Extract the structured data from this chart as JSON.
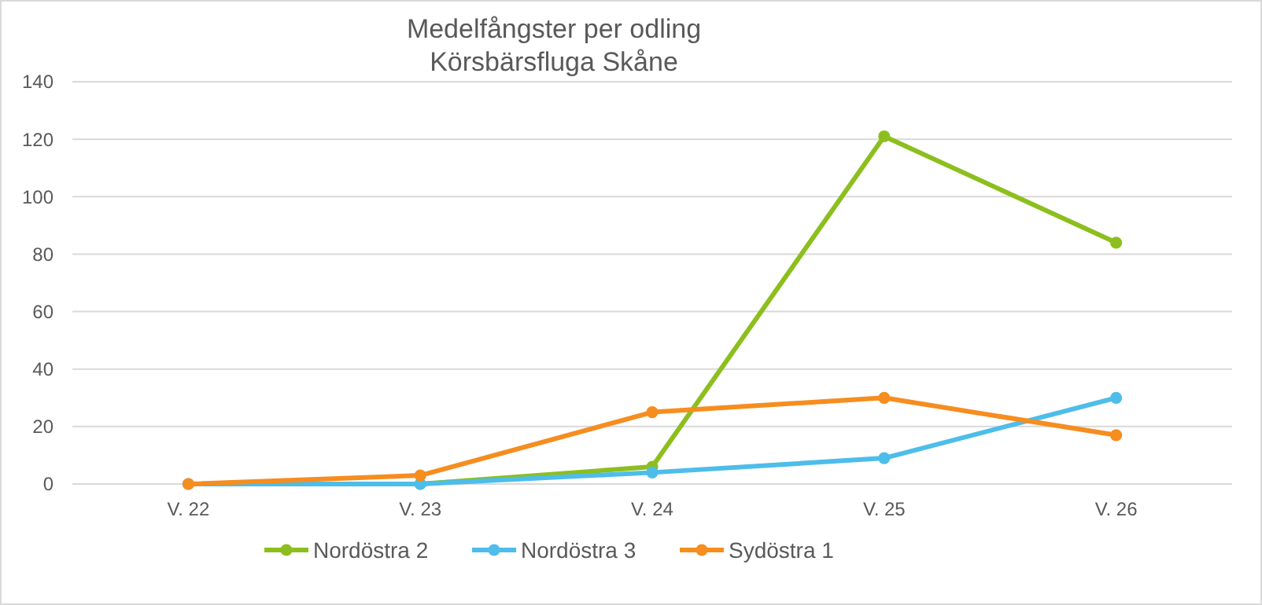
{
  "chart_data": {
    "type": "line",
    "title": "Medelfångster per odling\nKörsbärsfluga Skåne",
    "categories": [
      "V. 22",
      "V. 23",
      "V. 24",
      "V. 25",
      "V. 26"
    ],
    "series": [
      {
        "name": "Nordöstra 2",
        "color": "#8cbf1e",
        "values": [
          null,
          0,
          6,
          121,
          84
        ]
      },
      {
        "name": "Nordöstra 3",
        "color": "#4dbde9",
        "values": [
          0,
          0,
          4,
          9,
          30
        ]
      },
      {
        "name": "Sydöstra 1",
        "color": "#f68d1f",
        "values": [
          0,
          3,
          25,
          30,
          17
        ]
      }
    ],
    "ylim": [
      0,
      140
    ],
    "yticks": [
      0,
      20,
      40,
      60,
      80,
      100,
      120,
      140
    ],
    "grid": "y",
    "legend": "bottom",
    "marker": "circle",
    "line_style": "solid"
  }
}
